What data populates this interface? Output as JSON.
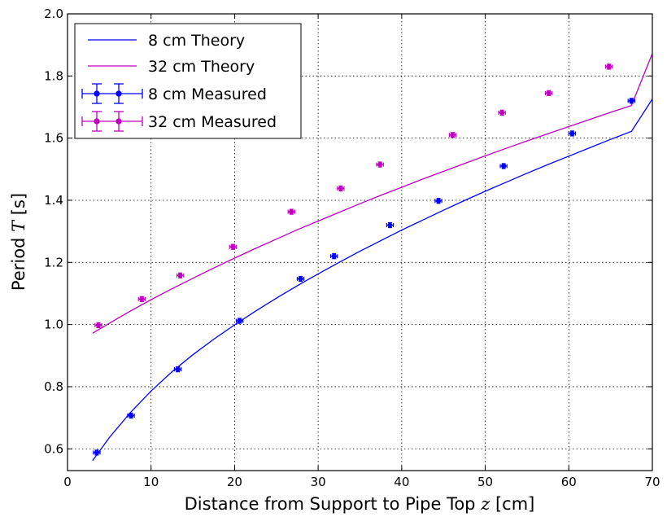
{
  "chart_data": {
    "type": "scatter",
    "xlabel_prefix": "Distance from Support to Pipe Top ",
    "xlabel_symbol": "z",
    "xlabel_suffix": " [cm]",
    "ylabel_prefix": "Period ",
    "ylabel_symbol": "T",
    "ylabel_suffix": " [s]",
    "xlim": [
      0,
      70
    ],
    "ylim": [
      0.53,
      2.0
    ],
    "xticks": [
      0,
      10,
      20,
      30,
      40,
      50,
      60,
      70
    ],
    "yticks": [
      0.6,
      0.8,
      1.0,
      1.2,
      1.4,
      1.6,
      1.8,
      2.0
    ],
    "xtick_labels": [
      "0",
      "10",
      "20",
      "30",
      "40",
      "50",
      "60",
      "70"
    ],
    "ytick_labels": [
      "0.6",
      "0.8",
      "1.0",
      "1.2",
      "1.4",
      "1.6",
      "1.8",
      "2.0"
    ],
    "grid": true,
    "legend_position": "top-left",
    "series": [
      {
        "name": "8 cm Theory",
        "kind": "line",
        "color": "#0000ff",
        "x": [
          3,
          5,
          7.5,
          10,
          12.5,
          15,
          17.5,
          20,
          22.5,
          25,
          27.5,
          30,
          32.5,
          35,
          37.5,
          40,
          42.5,
          45,
          47.5,
          50,
          52.5,
          55,
          57.5,
          60,
          62.5,
          65,
          67.5,
          70
        ],
        "y": [
          0.562,
          0.636,
          0.716,
          0.786,
          0.848,
          0.903,
          0.953,
          0.999,
          1.043,
          1.085,
          1.125,
          1.163,
          1.2,
          1.236,
          1.27,
          1.304,
          1.336,
          1.368,
          1.399,
          1.429,
          1.458,
          1.487,
          1.515,
          1.542,
          1.569,
          1.596,
          1.622,
          1.726
        ]
      },
      {
        "name": "32 cm Theory",
        "kind": "line",
        "color": "#bf00bf",
        "x": [
          3,
          5,
          7.5,
          10,
          12.5,
          15,
          17.5,
          20,
          22.5,
          25,
          27.5,
          30,
          32.5,
          35,
          37.5,
          40,
          42.5,
          45,
          47.5,
          50,
          52.5,
          55,
          57.5,
          60,
          62.5,
          65,
          67.5,
          70
        ],
        "y": [
          0.972,
          1.004,
          1.043,
          1.08,
          1.115,
          1.149,
          1.182,
          1.214,
          1.245,
          1.275,
          1.305,
          1.333,
          1.361,
          1.389,
          1.416,
          1.442,
          1.468,
          1.493,
          1.518,
          1.543,
          1.567,
          1.591,
          1.614,
          1.637,
          1.66,
          1.683,
          1.705,
          1.872
        ]
      },
      {
        "name": "8 cm Measured",
        "kind": "errorbar",
        "color": "#0000ff",
        "x": [
          3.5,
          7.6,
          13.2,
          20.6,
          27.9,
          31.9,
          38.6,
          44.4,
          52.2,
          60.4,
          67.5
        ],
        "y": [
          0.588,
          0.707,
          0.856,
          1.012,
          1.147,
          1.22,
          1.32,
          1.398,
          1.51,
          1.615,
          1.72
        ],
        "xerr": 0.4,
        "yerr": 0.008
      },
      {
        "name": "32 cm Measured",
        "kind": "errorbar",
        "color": "#bf00bf",
        "x": [
          3.7,
          8.9,
          13.5,
          19.8,
          26.8,
          32.7,
          37.4,
          46.1,
          52.0,
          57.6,
          64.8
        ],
        "y": [
          0.998,
          1.082,
          1.158,
          1.25,
          1.363,
          1.438,
          1.515,
          1.61,
          1.682,
          1.745,
          1.83
        ],
        "xerr": 0.4,
        "yerr": 0.008
      }
    ]
  }
}
